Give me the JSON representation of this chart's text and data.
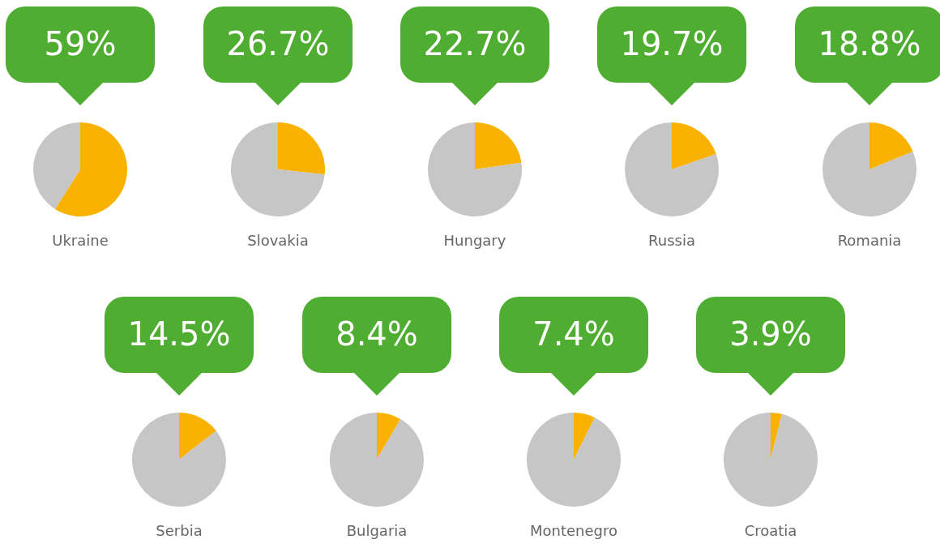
{
  "chart_data": [
    {
      "type": "pie",
      "title": "Ukraine",
      "categories": [
        null,
        null
      ],
      "values": [
        59,
        41
      ],
      "colors": [
        "#f9b200",
        "#c6c6c6"
      ],
      "value_labels": [
        "59%",
        null
      ],
      "legend": false
    },
    {
      "type": "pie",
      "title": "Slovakia",
      "categories": [
        null,
        null
      ],
      "values": [
        26.7,
        73.3
      ],
      "colors": [
        "#f9b200",
        "#c6c6c6"
      ],
      "value_labels": [
        "26.7%",
        null
      ],
      "legend": false
    },
    {
      "type": "pie",
      "title": "Hungary",
      "categories": [
        null,
        null
      ],
      "values": [
        22.7,
        77.3
      ],
      "colors": [
        "#f9b200",
        "#c6c6c6"
      ],
      "value_labels": [
        "22.7%",
        null
      ],
      "legend": false
    },
    {
      "type": "pie",
      "title": "Russia",
      "categories": [
        null,
        null
      ],
      "values": [
        19.7,
        80.3
      ],
      "colors": [
        "#f9b200",
        "#c6c6c6"
      ],
      "value_labels": [
        "19.7%",
        null
      ],
      "legend": false
    },
    {
      "type": "pie",
      "title": "Romania",
      "categories": [
        null,
        null
      ],
      "values": [
        18.8,
        81.2
      ],
      "colors": [
        "#f9b200",
        "#c6c6c6"
      ],
      "value_labels": [
        "18.8%",
        null
      ],
      "legend": false
    },
    {
      "type": "pie",
      "title": "Serbia",
      "categories": [
        null,
        null
      ],
      "values": [
        14.5,
        85.5
      ],
      "colors": [
        "#f9b200",
        "#c6c6c6"
      ],
      "value_labels": [
        "14.5%",
        null
      ],
      "legend": false
    },
    {
      "type": "pie",
      "title": "Bulgaria",
      "categories": [
        null,
        null
      ],
      "values": [
        8.4,
        91.6
      ],
      "colors": [
        "#f9b200",
        "#c6c6c6"
      ],
      "value_labels": [
        "8.4%",
        null
      ],
      "legend": false
    },
    {
      "type": "pie",
      "title": "Montenegro",
      "categories": [
        null,
        null
      ],
      "values": [
        7.4,
        92.6
      ],
      "colors": [
        "#f9b200",
        "#c6c6c6"
      ],
      "value_labels": [
        "7.4%",
        null
      ],
      "legend": false
    },
    {
      "type": "pie",
      "title": "Croatia",
      "categories": [
        null,
        null
      ],
      "values": [
        3.9,
        96.1
      ],
      "colors": [
        "#f9b200",
        "#c6c6c6"
      ],
      "value_labels": [
        "3.9%",
        null
      ],
      "legend": false
    }
  ]
}
